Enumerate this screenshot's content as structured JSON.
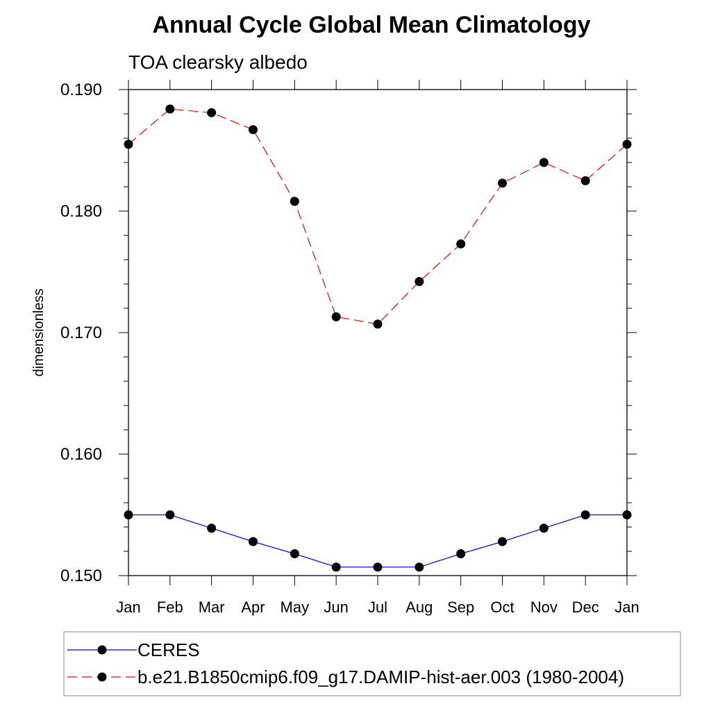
{
  "chart_data": {
    "type": "line",
    "title": "Annual Cycle Global Mean Climatology",
    "subtitle": "TOA clearsky albedo",
    "xlabel": "",
    "ylabel": "dimensionless",
    "categories": [
      "Jan",
      "Feb",
      "Mar",
      "Apr",
      "May",
      "Jun",
      "Jul",
      "Aug",
      "Sep",
      "Oct",
      "Nov",
      "Dec",
      "Jan"
    ],
    "ylim": [
      0.15,
      0.19
    ],
    "yticks": [
      "0.150",
      "0.160",
      "0.170",
      "0.180",
      "0.190"
    ],
    "grid": false,
    "legend_position": "bottom",
    "series": [
      {
        "name": "CERES",
        "color": "#0000ff",
        "line_style": "solid",
        "marker": "filled-circle",
        "values": [
          0.155,
          0.155,
          0.1539,
          0.1528,
          0.1518,
          0.1507,
          0.1507,
          0.1507,
          0.1518,
          0.1528,
          0.1539,
          0.155,
          0.155
        ]
      },
      {
        "name": "b.e21.B1850cmip6.f09_g17.DAMIP-hist-aer.003 (1980-2004)",
        "color": "#ff0000",
        "line_style": "dashed",
        "marker": "filled-circle",
        "values": [
          0.1855,
          0.1884,
          0.1881,
          0.1867,
          0.1808,
          0.1713,
          0.1707,
          0.1742,
          0.1773,
          0.1823,
          0.184,
          0.1825,
          0.1855
        ]
      }
    ]
  }
}
